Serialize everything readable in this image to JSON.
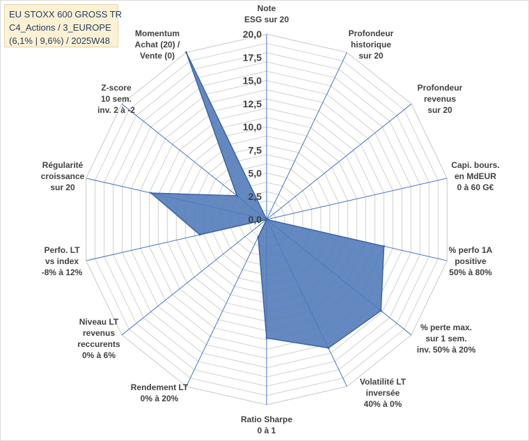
{
  "title": {
    "line1": "EU STOXX 600 GROSS TR",
    "line2": "C4_Actions / 3_EUROPE",
    "line3": "(6,1% | 9,6%) / 2025W48"
  },
  "colors": {
    "fill": "#4f79b8",
    "stroke": "#3a63a6",
    "grid": "#d0d0d0",
    "spoke": "#4472c4",
    "title_bg": "#fdf1d4"
  },
  "chart_data": {
    "type": "radar",
    "title": "EU STOXX 600 GROSS TR — C4_Actions / 3_EUROPE — (6,1% | 9,6%) / 2025W48",
    "rlim": [
      0,
      20
    ],
    "ticks": [
      "0,0",
      "2,5",
      "5,0",
      "7,5",
      "10,0",
      "12,5",
      "15,0",
      "17,5",
      "20,0"
    ],
    "grid_steps": 20,
    "axes": [
      {
        "lines": [
          "Note",
          "ESG sur 20"
        ],
        "value": 0
      },
      {
        "lines": [
          "Profondeur",
          "historique",
          "sur 20"
        ],
        "value": 0
      },
      {
        "lines": [
          "Profondeur",
          "revenus",
          "sur 20"
        ],
        "value": 0
      },
      {
        "lines": [
          "Capi. bours.",
          "en MdEUR",
          "0 à 60 G€"
        ],
        "value": 0
      },
      {
        "lines": [
          "% perfo 1A",
          "positive",
          "50% à 80%"
        ],
        "value": 13
      },
      {
        "lines": [
          "% perte max.",
          "sur 1 sem.",
          "inv. 50% à 20%"
        ],
        "value": 15.8
      },
      {
        "lines": [
          "Volatilité LT",
          "inversée",
          "40% à 0%"
        ],
        "value": 15.4
      },
      {
        "lines": [
          "Ratio Sharpe",
          "0 à 1"
        ],
        "value": 12.8
      },
      {
        "lines": [
          "Rendement LT",
          "0% à 20%"
        ],
        "value": 2.1
      },
      {
        "lines": [
          "Niveau LT",
          "revenus",
          "reccurents",
          "0% à 6%"
        ],
        "value": 0
      },
      {
        "lines": [
          "Perfo. LT",
          "vs index",
          "-8% à 12%"
        ],
        "value": 7.4
      },
      {
        "lines": [
          "Régularité",
          "croissance",
          "sur 20"
        ],
        "value": 12.8
      },
      {
        "lines": [
          "Z-score",
          "10 sem.",
          "inv. 2 à -2"
        ],
        "value": 4.1
      },
      {
        "lines": [
          "Momentum",
          "Achat (20) /",
          "Vente (0)"
        ],
        "value": 20
      }
    ]
  }
}
